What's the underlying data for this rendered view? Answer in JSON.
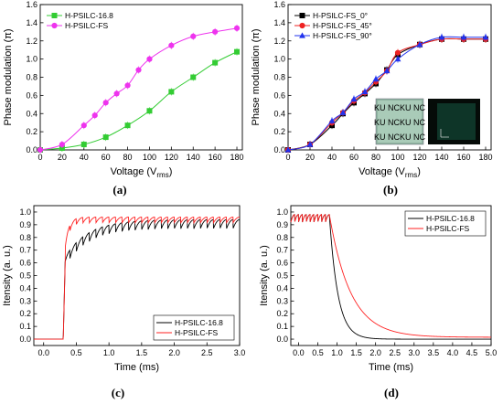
{
  "chart_data": [
    {
      "panel_label": "(a)",
      "type": "line",
      "xlabel": "Voltage (V",
      "xlabel_sub": "rms",
      "xlabel_end": ")",
      "ylabel": "Phase modulation (π)",
      "xlim": [
        0,
        185
      ],
      "ylim": [
        0,
        1.6
      ],
      "xticks": [
        0,
        20,
        40,
        60,
        80,
        100,
        120,
        140,
        160,
        180
      ],
      "yticks": [
        0.0,
        0.2,
        0.4,
        0.6,
        0.8,
        1.0,
        1.2,
        1.4,
        1.6
      ],
      "ytick_decimals": 1,
      "legend_position": "top-left",
      "series": [
        {
          "name": "H-PSILC-16.8",
          "color": "#33cc33",
          "marker": "square",
          "x": [
            0,
            20,
            40,
            60,
            80,
            100,
            120,
            140,
            160,
            180
          ],
          "y": [
            0.0,
            0.02,
            0.06,
            0.14,
            0.27,
            0.43,
            0.64,
            0.8,
            0.96,
            1.08
          ]
        },
        {
          "name": "H-PSILC-FS",
          "color": "#ee33ee",
          "marker": "circle",
          "x": [
            0,
            20,
            40,
            50,
            60,
            70,
            80,
            90,
            100,
            120,
            140,
            160,
            180
          ],
          "y": [
            0.0,
            0.06,
            0.27,
            0.38,
            0.52,
            0.62,
            0.71,
            0.88,
            1.0,
            1.15,
            1.25,
            1.3,
            1.34
          ]
        }
      ]
    },
    {
      "panel_label": "(b)",
      "type": "line",
      "xlabel": "Voltage (V",
      "xlabel_sub": "rms",
      "xlabel_end": ")",
      "ylabel": "Phase modulation (π)",
      "xlim": [
        0,
        185
      ],
      "ylim": [
        0,
        1.6
      ],
      "xticks": [
        0,
        20,
        40,
        60,
        80,
        100,
        120,
        140,
        160,
        180
      ],
      "yticks": [
        0.0,
        0.2,
        0.4,
        0.6,
        0.8,
        1.0,
        1.2,
        1.4,
        1.6
      ],
      "ytick_decimals": 1,
      "legend_position": "top-left",
      "inset_photo_text": [
        "KU NCKU NC",
        "KU NCKU NC",
        "KU NCKU NC"
      ],
      "series": [
        {
          "name": "H-PSILC-FS_0°",
          "color": "#000000",
          "marker": "square",
          "x": [
            0,
            20,
            40,
            50,
            60,
            70,
            80,
            90,
            100,
            120,
            140,
            160,
            180
          ],
          "y": [
            0.0,
            0.06,
            0.27,
            0.4,
            0.52,
            0.62,
            0.73,
            0.88,
            1.05,
            1.16,
            1.22,
            1.22,
            1.22
          ]
        },
        {
          "name": "H-PSILC-FS_45°",
          "color": "#ee2222",
          "marker": "circle",
          "x": [
            0,
            20,
            40,
            50,
            60,
            70,
            80,
            90,
            100,
            120,
            140,
            160,
            180
          ],
          "y": [
            0.0,
            0.06,
            0.3,
            0.41,
            0.54,
            0.63,
            0.75,
            0.87,
            1.07,
            1.16,
            1.22,
            1.22,
            1.22
          ]
        },
        {
          "name": "H-PSILC-FS_90°",
          "color": "#2233ee",
          "marker": "triangle",
          "x": [
            0,
            20,
            40,
            50,
            60,
            70,
            80,
            90,
            100,
            120,
            140,
            160,
            180
          ],
          "y": [
            0.0,
            0.06,
            0.32,
            0.41,
            0.56,
            0.64,
            0.78,
            0.87,
            1.0,
            1.16,
            1.24,
            1.24,
            1.24
          ]
        }
      ]
    },
    {
      "panel_label": "(c)",
      "type": "line",
      "xlabel": "Time (ms)",
      "ylabel": "Itensity (a. u.)",
      "xlim": [
        -0.15,
        3.0
      ],
      "ylim": [
        -0.05,
        1.05
      ],
      "xticks": [
        0.0,
        0.5,
        1.0,
        1.5,
        2.0,
        2.5,
        3.0
      ],
      "xtick_decimals": 1,
      "yticks": [
        0.0,
        0.1,
        0.2,
        0.3,
        0.4,
        0.5,
        0.6,
        0.7,
        0.8,
        0.9,
        1.0
      ],
      "ytick_decimals": 1,
      "legend_position": "bottom-right",
      "series": [
        {
          "name": "H-PSILC-16.8",
          "color": "#000000",
          "model": "rise",
          "t0": 0.3,
          "tau": 0.35,
          "y0": 0.62,
          "y1": 0.94,
          "ripple": 0.07,
          "period": 0.1
        },
        {
          "name": "H-PSILC-FS",
          "color": "#ff2222",
          "model": "rise",
          "t0": 0.3,
          "tau": 0.06,
          "y0": 0.6,
          "y1": 0.96,
          "ripple": 0.045,
          "period": 0.1
        }
      ]
    },
    {
      "panel_label": "(d)",
      "type": "line",
      "xlabel": "Time (ms)",
      "ylabel": "Itensity (a. u.)",
      "xlim": [
        -0.2,
        5.0
      ],
      "ylim": [
        -0.05,
        1.05
      ],
      "xticks": [
        0.0,
        0.5,
        1.0,
        1.5,
        2.0,
        2.5,
        3.0,
        3.5,
        4.0,
        4.5,
        5.0
      ],
      "xtick_decimals": 1,
      "yticks": [
        0.0,
        0.1,
        0.2,
        0.3,
        0.4,
        0.5,
        0.6,
        0.7,
        0.8,
        0.9,
        1.0
      ],
      "ytick_decimals": 1,
      "legend_position": "top-right",
      "series": [
        {
          "name": "H-PSILC-16.8",
          "color": "#000000",
          "model": "decay",
          "t0": 0.8,
          "tau": 0.22,
          "y0": 0.0,
          "y1": 0.98,
          "ripple": 0.06,
          "period": 0.1
        },
        {
          "name": "H-PSILC-FS",
          "color": "#ff2222",
          "model": "decay",
          "t0": 0.8,
          "tau": 0.55,
          "y0": 0.015,
          "y1": 0.98,
          "ripple": 0.06,
          "period": 0.1
        }
      ]
    }
  ]
}
